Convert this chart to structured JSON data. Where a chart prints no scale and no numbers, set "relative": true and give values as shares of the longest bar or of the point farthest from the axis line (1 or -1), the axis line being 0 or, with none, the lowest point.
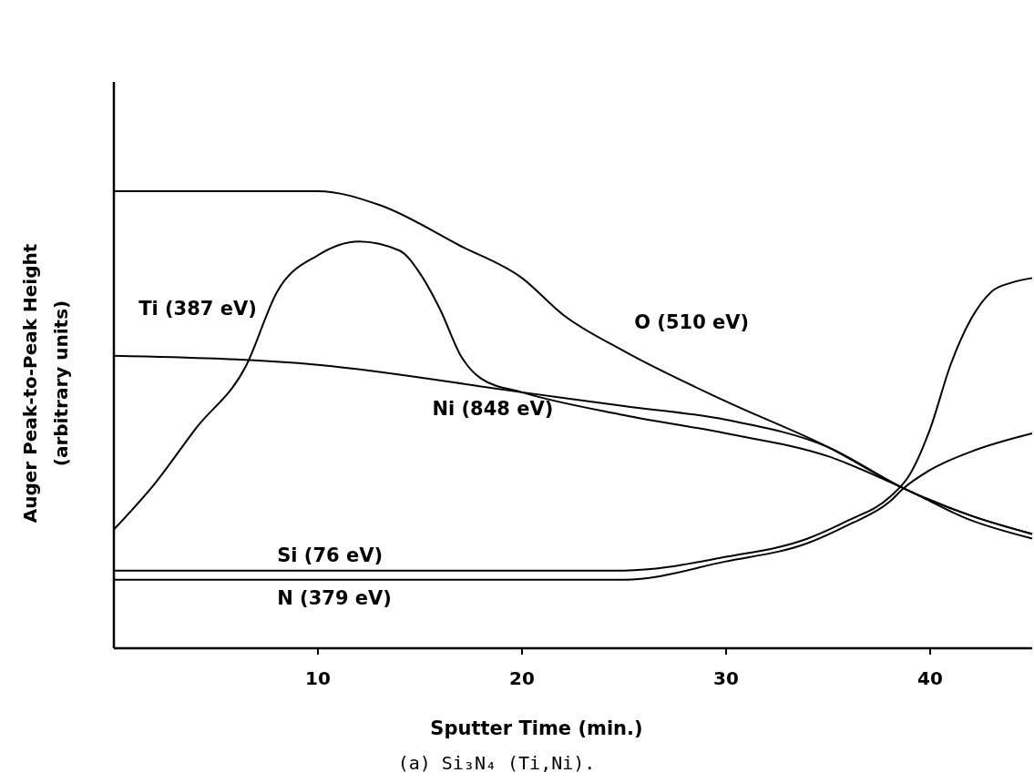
{
  "chart_data": {
    "type": "line",
    "relative": true,
    "xlabel": "Sputter Time (min.)",
    "ylabel": "Auger Peak-to-Peak Height\n(arbitrary units)",
    "xlim": [
      0,
      45
    ],
    "xticks": [
      10,
      20,
      30,
      40
    ],
    "grid": false,
    "marker": "none",
    "line_style": "solid",
    "annotations": [
      "(a) Si₃N₄ (Ti,Ni)."
    ],
    "series": [
      {
        "name": "Ti (387 eV)",
        "color": "#000000",
        "x": [
          0,
          2,
          4,
          6.5,
          8,
          10,
          12,
          14,
          15,
          16,
          17,
          18,
          20,
          25,
          30,
          35,
          38.7,
          42,
          45
        ],
        "values": [
          0.26,
          0.36,
          0.48,
          0.62,
          0.78,
          0.86,
          0.89,
          0.87,
          0.82,
          0.74,
          0.64,
          0.59,
          0.56,
          0.51,
          0.47,
          0.42,
          0.35,
          0.28,
          0.24
        ]
      },
      {
        "name": "O (510 eV)",
        "color": "#000000",
        "x": [
          0,
          10,
          13,
          17,
          20,
          22,
          25,
          30,
          35,
          38.7,
          42,
          45
        ],
        "values": [
          1,
          1.0,
          0.97,
          0.88,
          0.81,
          0.73,
          0.65,
          0.54,
          0.44,
          0.35,
          0.29,
          0.25
        ]
      },
      {
        "name": "Ni (848 eV)",
        "color": "#000000",
        "x": [
          0,
          10,
          20,
          25,
          30,
          35,
          38.7,
          42,
          45
        ],
        "values": [
          0.64,
          0.62,
          0.56,
          0.53,
          0.5,
          0.44,
          0.35,
          0.29,
          0.25
        ]
      },
      {
        "name": "Si (76 eV)",
        "color": "#000000",
        "x": [
          0,
          25,
          30,
          34,
          36,
          38,
          39,
          40,
          41,
          42,
          43,
          44,
          45
        ],
        "values": [
          0.17,
          0.17,
          0.2,
          0.24,
          0.28,
          0.33,
          0.38,
          0.48,
          0.62,
          0.72,
          0.78,
          0.8,
          0.81
        ]
      },
      {
        "name": "N (379 eV)",
        "color": "#000000",
        "x": [
          0,
          25,
          30,
          34,
          36,
          38,
          38.7,
          40,
          42,
          45
        ],
        "values": [
          0.15,
          0.15,
          0.19,
          0.23,
          0.27,
          0.32,
          0.35,
          0.39,
          0.43,
          0.47
        ]
      }
    ]
  }
}
